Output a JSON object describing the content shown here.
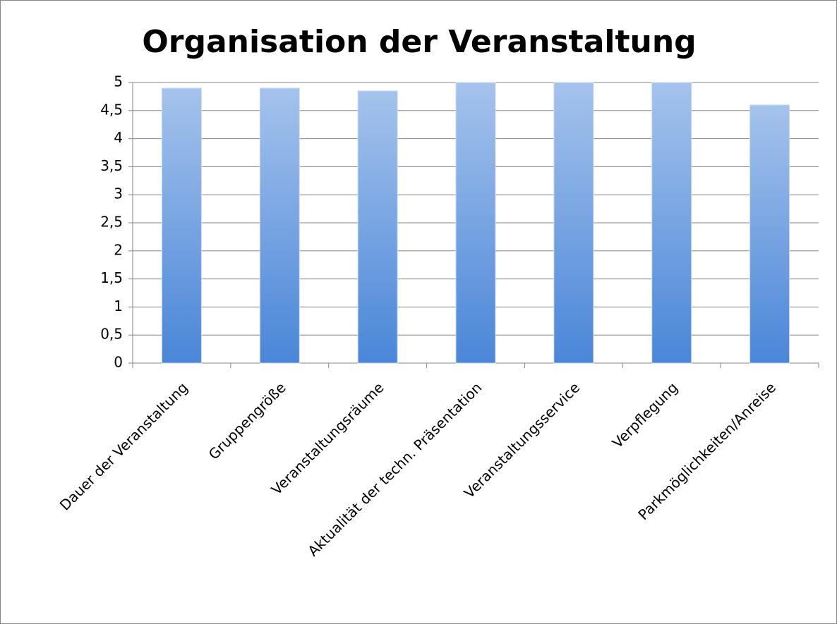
{
  "chart_data": {
    "type": "bar",
    "title": "Organisation der Veranstaltung",
    "categories": [
      "Dauer der Veranstaltung",
      "Gruppengröße",
      "Veranstaltungsräume",
      "Aktualität der techn. Präsentation",
      "Veranstaltungsservice",
      "Verpflegung",
      "Parkmöglichkeiten/Anreise"
    ],
    "values": [
      4.9,
      4.9,
      4.85,
      5,
      5,
      5,
      4.6
    ],
    "color": "#4a86d8",
    "ylim": [
      0,
      5
    ],
    "yticks": [
      0,
      {
        "value": 0.5,
        "label": "0,5"
      },
      1,
      {
        "value": 1.5,
        "label": "1,5"
      },
      2,
      {
        "value": 2.5,
        "label": "2,5"
      },
      3,
      {
        "value": 3.5,
        "label": "3,5"
      },
      4,
      {
        "value": 4.5,
        "label": "4,5"
      },
      5
    ],
    "grid": true
  }
}
